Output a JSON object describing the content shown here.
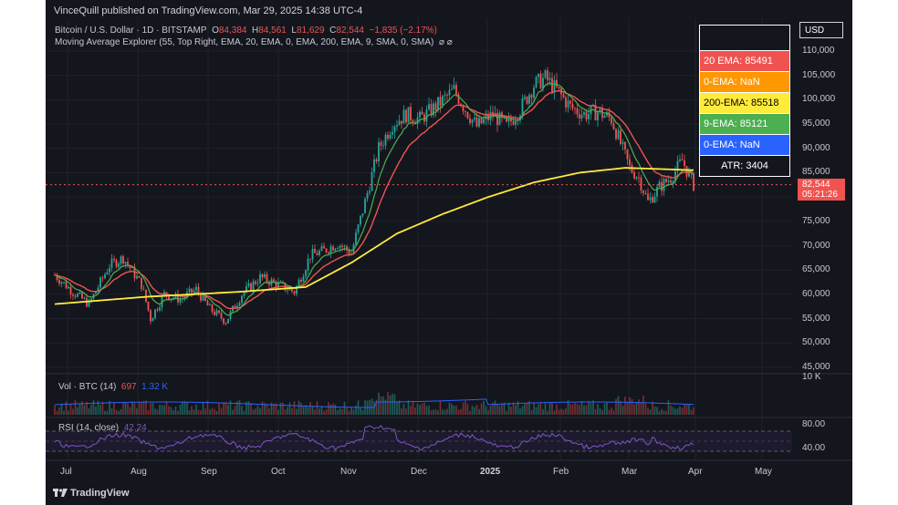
{
  "header": {
    "publisher": "VinceQuill published on TradingView.com, Mar 29, 2025 14:38 UTC-4",
    "symbol": "Bitcoin / U.S. Dollar · 1D · BITSTAMP",
    "ohlc": {
      "o_label": "O",
      "o": "84,384",
      "h_label": "H",
      "h": "84,561",
      "l_label": "L",
      "l": "81,629",
      "c_label": "C",
      "c": "82,544",
      "change": "−1,835 (−2.17%)"
    },
    "indicator": "Moving Average Explorer (55, Top Right, EMA, 20, EMA, 0, EMA, 200, EMA, 9, SMA, 0, SMA)",
    "indicator_icons": "⌀ ⌀"
  },
  "ma_table": {
    "rows": [
      {
        "label": "20 EMA: 85491",
        "bg": "#ef5350",
        "fg": "#ffffff"
      },
      {
        "label": "0-EMA: NaN",
        "bg": "#ff9800",
        "fg": "#ffffff"
      },
      {
        "label": "200-EMA: 85518",
        "bg": "#ffeb3b",
        "fg": "#000000"
      },
      {
        "label": "9-EMA: 85121",
        "bg": "#4caf50",
        "fg": "#ffffff"
      },
      {
        "label": "0-EMA: NaN",
        "bg": "#2962ff",
        "fg": "#ffffff"
      }
    ],
    "atr": "ATR: 3404"
  },
  "price_axis": {
    "currency": "USD",
    "ticks": [
      "110,000",
      "105,000",
      "100,000",
      "95,000",
      "90,000",
      "85,000",
      "80,000",
      "75,000",
      "70,000",
      "65,000",
      "60,000",
      "55,000",
      "50,000",
      "45,000"
    ],
    "last_price": "82,544",
    "countdown": "05:21:26",
    "volume_tick": "10 K",
    "rsi_ticks": [
      "80.00",
      "40.00"
    ]
  },
  "time_axis": [
    "Jul",
    "Aug",
    "Sep",
    "Oct",
    "Nov",
    "Dec",
    "2025",
    "Feb",
    "Mar",
    "Apr",
    "May"
  ],
  "volume": {
    "label": "Vol · BTC (14)",
    "v1": "697",
    "v2": "1.32 K"
  },
  "rsi": {
    "label": "RSI (14, close)",
    "value": "42.24"
  },
  "brand": "TradingView",
  "colors": {
    "background": "#14161e",
    "up": "#26a69a",
    "down": "#ef5350",
    "ema20": "#ef5350",
    "ema9": "#4caf50",
    "ema200": "#ffeb3b",
    "rsi": "#7e57c2",
    "volume_ma": "#2962ff"
  },
  "chart_data": {
    "type": "candlestick",
    "price_range": [
      45000,
      111000
    ],
    "anchors": [
      {
        "t": 0,
        "p": 64000
      },
      {
        "t": 8,
        "p": 60500
      },
      {
        "t": 15,
        "p": 58000
      },
      {
        "t": 24,
        "p": 66000
      },
      {
        "t": 30,
        "p": 67500
      },
      {
        "t": 38,
        "p": 62000
      },
      {
        "t": 42,
        "p": 55000
      },
      {
        "t": 48,
        "p": 60000
      },
      {
        "t": 55,
        "p": 59000
      },
      {
        "t": 62,
        "p": 61000
      },
      {
        "t": 68,
        "p": 57000
      },
      {
        "t": 75,
        "p": 54500
      },
      {
        "t": 82,
        "p": 60000
      },
      {
        "t": 90,
        "p": 63500
      },
      {
        "t": 98,
        "p": 62000
      },
      {
        "t": 105,
        "p": 60500
      },
      {
        "t": 112,
        "p": 68000
      },
      {
        "t": 118,
        "p": 69000
      },
      {
        "t": 124,
        "p": 70500
      },
      {
        "t": 130,
        "p": 68500
      },
      {
        "t": 136,
        "p": 79000
      },
      {
        "t": 142,
        "p": 90000
      },
      {
        "t": 148,
        "p": 95000
      },
      {
        "t": 154,
        "p": 97000
      },
      {
        "t": 160,
        "p": 96000
      },
      {
        "t": 168,
        "p": 99000
      },
      {
        "t": 175,
        "p": 102000
      },
      {
        "t": 180,
        "p": 98000
      },
      {
        "t": 185,
        "p": 94500
      },
      {
        "t": 192,
        "p": 97000
      },
      {
        "t": 198,
        "p": 94500
      },
      {
        "t": 204,
        "p": 98000
      },
      {
        "t": 210,
        "p": 103000
      },
      {
        "t": 215,
        "p": 104500
      },
      {
        "t": 220,
        "p": 102000
      },
      {
        "t": 226,
        "p": 98500
      },
      {
        "t": 232,
        "p": 97000
      },
      {
        "t": 238,
        "p": 97500
      },
      {
        "t": 244,
        "p": 96000
      },
      {
        "t": 248,
        "p": 91000
      },
      {
        "t": 252,
        "p": 86000
      },
      {
        "t": 256,
        "p": 84000
      },
      {
        "t": 260,
        "p": 79000
      },
      {
        "t": 265,
        "p": 82000
      },
      {
        "t": 270,
        "p": 84000
      },
      {
        "t": 275,
        "p": 87500
      },
      {
        "t": 278,
        "p": 84500
      },
      {
        "t": 280,
        "p": 82544
      }
    ],
    "ema200_anchors": [
      {
        "t": 0,
        "p": 58000
      },
      {
        "t": 40,
        "p": 59500
      },
      {
        "t": 80,
        "p": 60500
      },
      {
        "t": 110,
        "p": 61500
      },
      {
        "t": 130,
        "p": 66500
      },
      {
        "t": 150,
        "p": 72500
      },
      {
        "t": 170,
        "p": 76500
      },
      {
        "t": 190,
        "p": 80000
      },
      {
        "t": 210,
        "p": 83000
      },
      {
        "t": 230,
        "p": 85000
      },
      {
        "t": 250,
        "p": 86000
      },
      {
        "t": 280,
        "p": 85518
      }
    ]
  }
}
